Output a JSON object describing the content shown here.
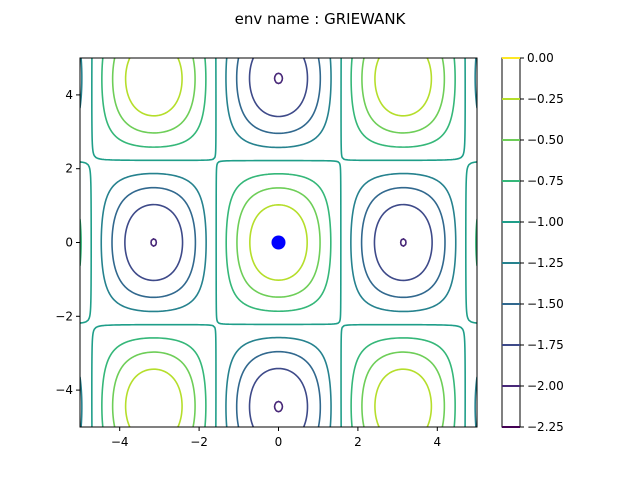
{
  "chart_data": {
    "type": "contour",
    "title": "env name : GRIEWANK",
    "xlabel": "",
    "ylabel": "",
    "xlim": [
      -5,
      5
    ],
    "ylim": [
      -5,
      5
    ],
    "x_ticks": [
      -4,
      -2,
      0,
      2,
      4
    ],
    "y_ticks": [
      -4,
      -2,
      0,
      2,
      4
    ],
    "x_tick_labels": [
      "−4",
      "−2",
      "0",
      "2",
      "4"
    ],
    "y_tick_labels": [
      "−4",
      "−2",
      "0",
      "2",
      "4"
    ],
    "function": "-(1 + (x^2 + y^2)/4000 - cos(x)·cos(y/√2))",
    "levels": [
      -2.25,
      -2.0,
      -1.75,
      -1.5,
      -1.25,
      -1.0,
      -0.75,
      -0.5,
      -0.25,
      0.0
    ],
    "level_labels": [
      "−2.25",
      "−2.00",
      "−1.75",
      "−1.50",
      "−1.25",
      "−1.00",
      "−0.75",
      "−0.50",
      "−0.25",
      "0.00"
    ],
    "level_colors": [
      "#440154",
      "#482878",
      "#3e4a89",
      "#31688e",
      "#26828e",
      "#1f9e89",
      "#35b779",
      "#6ece58",
      "#b5de2b",
      "#fde725"
    ],
    "marker": {
      "x": 0,
      "y": 0,
      "color": "#0000ff"
    },
    "grid": false,
    "colorbar": "right"
  }
}
